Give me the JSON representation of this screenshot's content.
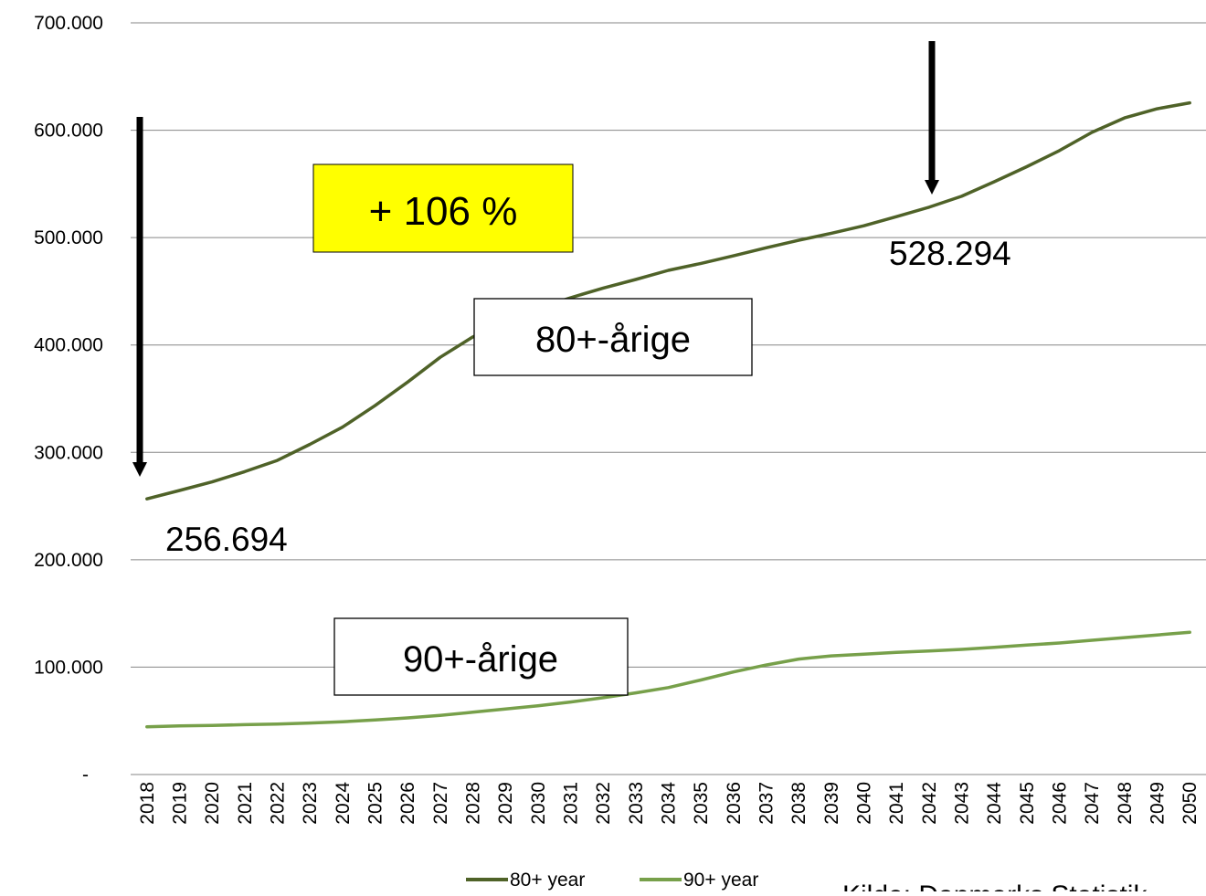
{
  "chart_data": {
    "type": "line",
    "categories": [
      "2018",
      "2019",
      "2020",
      "2021",
      "2022",
      "2023",
      "2024",
      "2025",
      "2026",
      "2027",
      "2028",
      "2029",
      "2030",
      "2031",
      "2032",
      "2033",
      "2034",
      "2035",
      "2036",
      "2037",
      "2038",
      "2039",
      "2040",
      "2041",
      "2042",
      "2043",
      "2044",
      "2045",
      "2046",
      "2047",
      "2048",
      "2049",
      "2050"
    ],
    "series": [
      {
        "name": "80+ year",
        "color": "#4f6228",
        "values": [
          256694,
          264500,
          272500,
          282000,
          292500,
          307500,
          323500,
          343500,
          365500,
          388500,
          407500,
          422000,
          434000,
          444000,
          453000,
          461000,
          469500,
          476000,
          483000,
          490500,
          497500,
          504000,
          511000,
          519500,
          528294,
          538500,
          552000,
          566000,
          581000,
          598000,
          611500,
          620000,
          625500
        ]
      },
      {
        "name": "90+ year",
        "color": "#77a04a",
        "values": [
          44500,
          45300,
          45800,
          46400,
          47000,
          48000,
          49200,
          50800,
          52700,
          55000,
          58000,
          61000,
          64000,
          67500,
          71500,
          76000,
          81000,
          88000,
          95500,
          102000,
          107500,
          110500,
          112000,
          113800,
          115000,
          116500,
          118500,
          120500,
          122500,
          125000,
          127500,
          130000,
          132500
        ]
      }
    ],
    "ylim": [
      0,
      700000
    ],
    "yticks": [
      {
        "value": 0,
        "label": "-"
      },
      {
        "value": 100000,
        "label": "100.000"
      },
      {
        "value": 200000,
        "label": "200.000"
      },
      {
        "value": 300000,
        "label": "300.000"
      },
      {
        "value": 400000,
        "label": "400.000"
      },
      {
        "value": 500000,
        "label": "500.000"
      },
      {
        "value": 600000,
        "label": "600.000"
      },
      {
        "value": 700000,
        "label": "700.000"
      }
    ],
    "grid": true,
    "legend_position": "bottom",
    "annotations": {
      "growth_label": "+ 106 %",
      "growth_bg": "#ffff00",
      "start_value_label": "256.694",
      "end_value_label": "528.294",
      "series1_box_label": "80+-årige",
      "series2_box_label": "90+-årige",
      "source_label": "Kilde: Danmarks Statistik"
    }
  }
}
